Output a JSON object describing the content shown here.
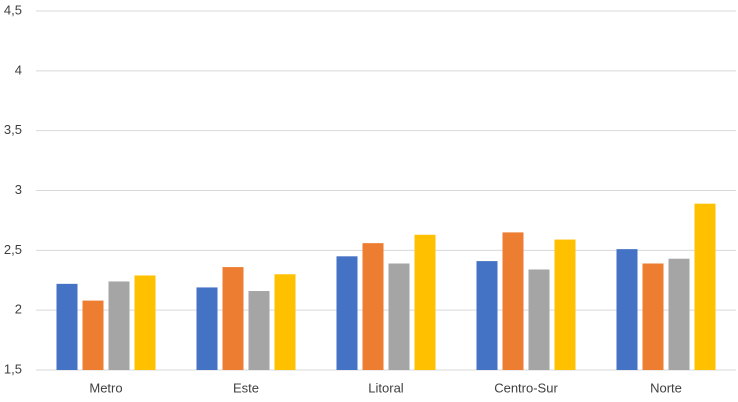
{
  "chart_data": {
    "type": "bar",
    "categories": [
      "Metro",
      "Este",
      "Litoral",
      "Centro-Sur",
      "Norte"
    ],
    "series": [
      {
        "color": "#4472c4",
        "values": [
          2.22,
          2.19,
          2.45,
          2.41,
          2.51
        ]
      },
      {
        "color": "#ed7d31",
        "values": [
          2.08,
          2.36,
          2.56,
          2.65,
          2.39
        ]
      },
      {
        "color": "#a5a5a5",
        "values": [
          2.24,
          2.16,
          2.39,
          2.34,
          2.43
        ]
      },
      {
        "color": "#ffc000",
        "values": [
          2.29,
          2.3,
          2.63,
          2.59,
          2.89
        ]
      }
    ],
    "ylim": [
      1.5,
      4.5
    ],
    "yticks": [
      {
        "value": 1.5,
        "label": "1,5"
      },
      2,
      {
        "value": 2.5,
        "label": "2,5"
      },
      3,
      {
        "value": 3.5,
        "label": "3,5"
      },
      4,
      {
        "value": 4.5,
        "label": "4,5"
      }
    ],
    "grid": true
  }
}
